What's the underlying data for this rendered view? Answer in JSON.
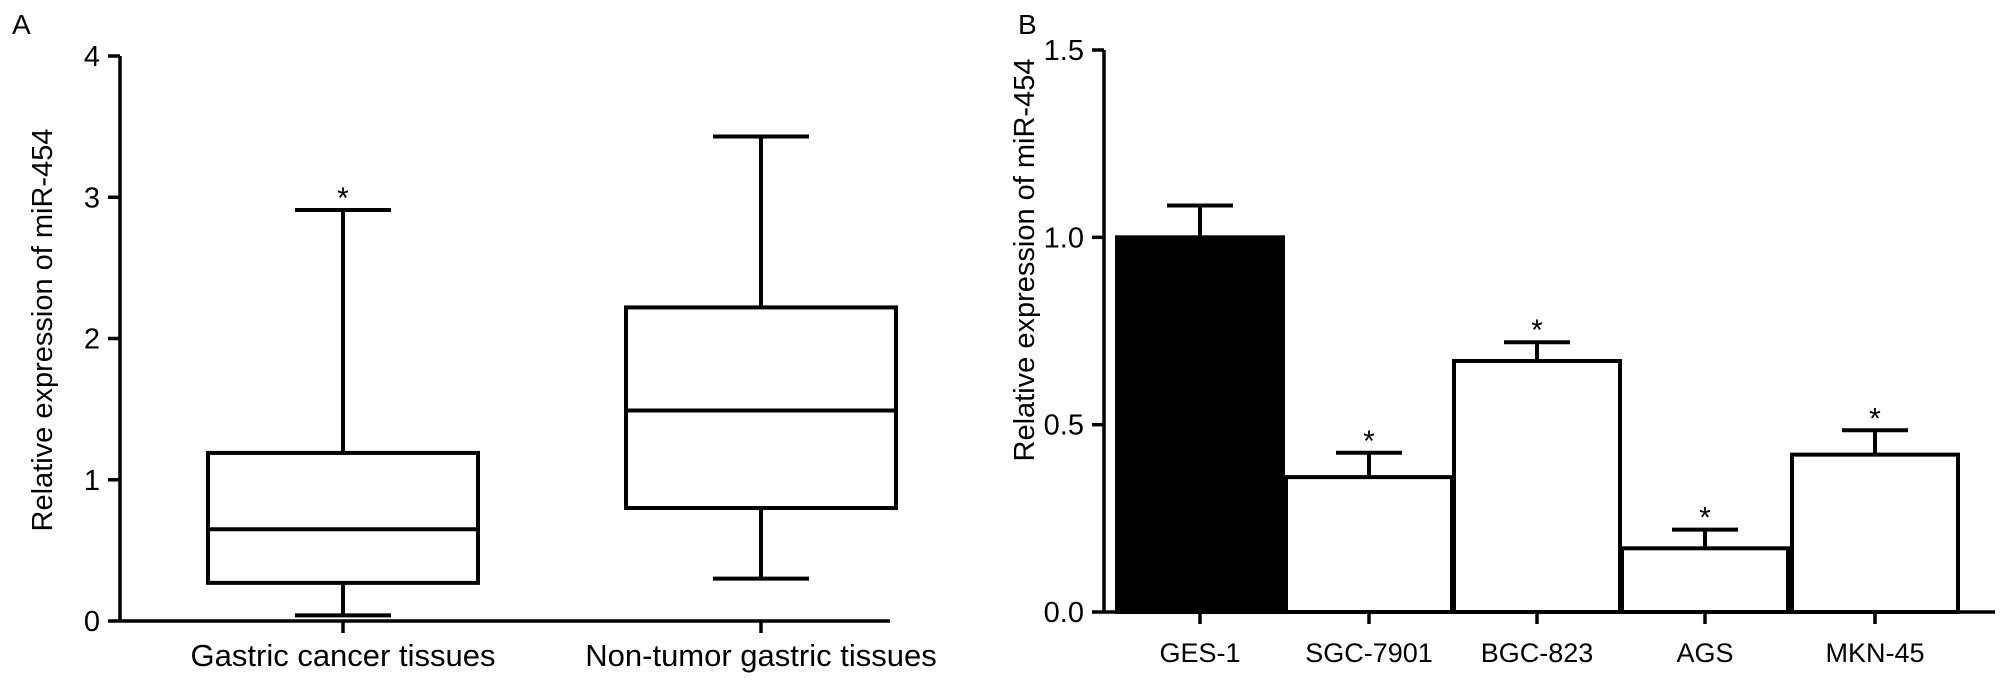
{
  "chart_data": [
    {
      "panel": "A",
      "type": "box",
      "title": "",
      "xlabel": "",
      "ylabel": "Relative expression of miR-454",
      "ylim": [
        0,
        4
      ],
      "yticks": [
        "0",
        "1",
        "2",
        "3",
        "4"
      ],
      "grid": false,
      "categories": [
        "Gastric cancer tissues",
        "Non-tumor gastric tissues"
      ],
      "boxes": [
        {
          "min": 0.04,
          "q1": 0.27,
          "median": 0.65,
          "q3": 1.19,
          "max": 2.91,
          "significance": "*"
        },
        {
          "min": 0.3,
          "q1": 0.8,
          "median": 1.49,
          "q3": 2.22,
          "max": 3.43,
          "significance": ""
        }
      ]
    },
    {
      "panel": "B",
      "type": "bar",
      "title": "",
      "xlabel": "",
      "ylabel": "Relative expression of miR-454",
      "ylim": [
        0,
        1.5
      ],
      "yticks": [
        "0.0",
        "0.5",
        "1.0",
        "1.5"
      ],
      "grid": false,
      "categories": [
        "GES-1",
        "SGC-7901",
        "BGC-823",
        "AGS",
        "MKN-45"
      ],
      "values": [
        1.0,
        0.36,
        0.67,
        0.17,
        0.42
      ],
      "errors": [
        0.085,
        0.065,
        0.05,
        0.05,
        0.065
      ],
      "significance": [
        "",
        "*",
        "*",
        "*",
        "*"
      ],
      "colors": [
        "#000000",
        "#ffffff",
        "#ffffff",
        "#ffffff",
        "#ffffff"
      ]
    }
  ]
}
